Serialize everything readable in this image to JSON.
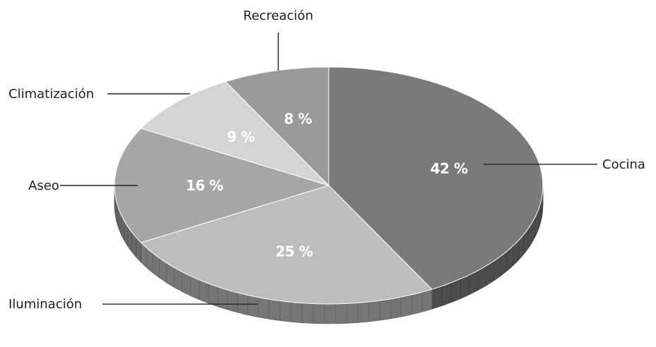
{
  "chart_data": {
    "type": "pie",
    "slices": [
      {
        "label": "Cocina",
        "value": 42,
        "value_label": "42 %",
        "color": "#7a7a7a"
      },
      {
        "label": "Iluminación",
        "value": 25,
        "value_label": "25 %",
        "color": "#bdbdbd"
      },
      {
        "label": "Aseo",
        "value": 16,
        "value_label": "16 %",
        "color": "#a6a6a6"
      },
      {
        "label": "Climatización",
        "value": 9,
        "value_label": "9 %",
        "color": "#d4d4d4"
      },
      {
        "label": "Recreación",
        "value": 8,
        "value_label": "8 %",
        "color": "#9a9a9a"
      }
    ],
    "style": "3d-tilted",
    "legend": "external labels with leader lines"
  }
}
